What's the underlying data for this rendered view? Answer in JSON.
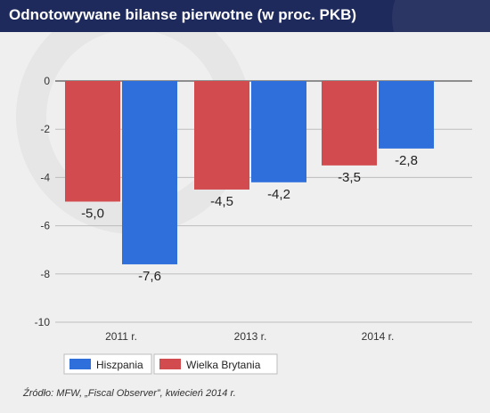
{
  "header": {
    "title": "Odnotowywane bilanse pierwotne (w proc. PKB)"
  },
  "source": "Źródło: MFW, „Fiscal Observer”, kwiecień 2014 r.",
  "colors": {
    "header_bg": "#1f2a5c",
    "hiszpania": "#2f6fdb",
    "wielka_brytania": "#d24b4e"
  },
  "chart_data": {
    "type": "bar",
    "title": "Odnotowywane bilanse pierwotne (w proc. PKB)",
    "categories": [
      "2011 r.",
      "2013 r.",
      "2014 r."
    ],
    "series": [
      {
        "name": "Wielka Brytania",
        "values": [
          -5.0,
          -4.5,
          -3.5
        ],
        "labels": [
          "-5,0",
          "-4,5",
          "-3,5"
        ],
        "color": "#d24b4e"
      },
      {
        "name": "Hiszpania",
        "values": [
          -7.6,
          -4.2,
          -2.8
        ],
        "labels": [
          "-7,6",
          "-4,2",
          "-2,8"
        ],
        "color": "#2f6fdb"
      }
    ],
    "yticks": [
      0,
      -2,
      -4,
      -6,
      -8,
      -10
    ],
    "ytick_labels": [
      "0",
      "-2",
      "-4",
      "-6",
      "-8",
      "-10"
    ],
    "ylim": [
      -10,
      0
    ],
    "grid": true,
    "legend": {
      "position": "bottom-left",
      "entries": [
        {
          "name": "Hiszpania",
          "color": "#2f6fdb"
        },
        {
          "name": "Wielka Brytania",
          "color": "#d24b4e"
        }
      ]
    }
  }
}
